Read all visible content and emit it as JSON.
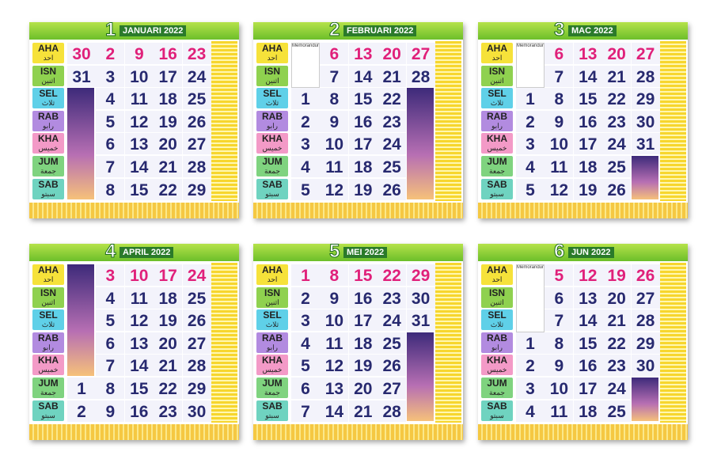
{
  "day_labels": [
    {
      "code": "AHA",
      "jawi": "احد"
    },
    {
      "code": "ISN",
      "jawi": "اثنين"
    },
    {
      "code": "SEL",
      "jawi": "ثلاث"
    },
    {
      "code": "RAB",
      "jawi": "رابو"
    },
    {
      "code": "KHA",
      "jawi": "خميس"
    },
    {
      "code": "JUM",
      "jawi": "جمعة"
    },
    {
      "code": "SAB",
      "jawi": "سبتو"
    }
  ],
  "pages": [
    {
      "number": "1",
      "title": "JANUARI 2022",
      "rows": [
        [
          "30",
          "2",
          "9",
          "16",
          "23"
        ],
        [
          "31",
          "3",
          "10",
          "17",
          "24"
        ],
        [
          null,
          "4",
          "11",
          "18",
          "25"
        ],
        [
          null,
          "5",
          "12",
          "19",
          "26"
        ],
        [
          null,
          "6",
          "13",
          "20",
          "27"
        ],
        [
          null,
          "7",
          "14",
          "21",
          "28"
        ],
        [
          null,
          "8",
          "15",
          "22",
          "29"
        ]
      ]
    },
    {
      "number": "2",
      "title": "FEBRUARI 2022",
      "memo": "Memorandum",
      "rows": [
        [
          null,
          "6",
          "13",
          "20",
          "27"
        ],
        [
          null,
          "7",
          "14",
          "21",
          "28"
        ],
        [
          "1",
          "8",
          "15",
          "22",
          null
        ],
        [
          "2",
          "9",
          "16",
          "23",
          null
        ],
        [
          "3",
          "10",
          "17",
          "24",
          null
        ],
        [
          "4",
          "11",
          "18",
          "25",
          null
        ],
        [
          "5",
          "12",
          "19",
          "26",
          null
        ]
      ]
    },
    {
      "number": "3",
      "title": "MAC 2022",
      "memo": "Memorandum",
      "rows": [
        [
          null,
          "6",
          "13",
          "20",
          "27"
        ],
        [
          null,
          "7",
          "14",
          "21",
          "28"
        ],
        [
          "1",
          "8",
          "15",
          "22",
          "29"
        ],
        [
          "2",
          "9",
          "16",
          "23",
          "30"
        ],
        [
          "3",
          "10",
          "17",
          "24",
          "31"
        ],
        [
          "4",
          "11",
          "18",
          "25",
          null
        ],
        [
          "5",
          "12",
          "19",
          "26",
          null
        ]
      ]
    },
    {
      "number": "4",
      "title": "APRIL 2022",
      "rows": [
        [
          null,
          "3",
          "10",
          "17",
          "24"
        ],
        [
          null,
          "4",
          "11",
          "18",
          "25"
        ],
        [
          null,
          "5",
          "12",
          "19",
          "26"
        ],
        [
          null,
          "6",
          "13",
          "20",
          "27"
        ],
        [
          null,
          "7",
          "14",
          "21",
          "28"
        ],
        [
          "1",
          "8",
          "15",
          "22",
          "29"
        ],
        [
          "2",
          "9",
          "16",
          "23",
          "30"
        ]
      ]
    },
    {
      "number": "5",
      "title": "MEI 2022",
      "rows": [
        [
          "1",
          "8",
          "15",
          "22",
          "29"
        ],
        [
          "2",
          "9",
          "16",
          "23",
          "30"
        ],
        [
          "3",
          "10",
          "17",
          "24",
          "31"
        ],
        [
          "4",
          "11",
          "18",
          "25",
          null
        ],
        [
          "5",
          "12",
          "19",
          "26",
          null
        ],
        [
          "6",
          "13",
          "20",
          "27",
          null
        ],
        [
          "7",
          "14",
          "21",
          "28",
          null
        ]
      ]
    },
    {
      "number": "6",
      "title": "JUN 2022",
      "memo": "Memorandum",
      "rows": [
        [
          null,
          "5",
          "12",
          "19",
          "26"
        ],
        [
          null,
          "6",
          "13",
          "20",
          "27"
        ],
        [
          null,
          "7",
          "14",
          "21",
          "28"
        ],
        [
          "1",
          "8",
          "15",
          "22",
          "29"
        ],
        [
          "2",
          "9",
          "16",
          "23",
          "30"
        ],
        [
          "3",
          "10",
          "17",
          "24",
          null
        ],
        [
          "4",
          "11",
          "18",
          "25",
          null
        ]
      ]
    }
  ]
}
